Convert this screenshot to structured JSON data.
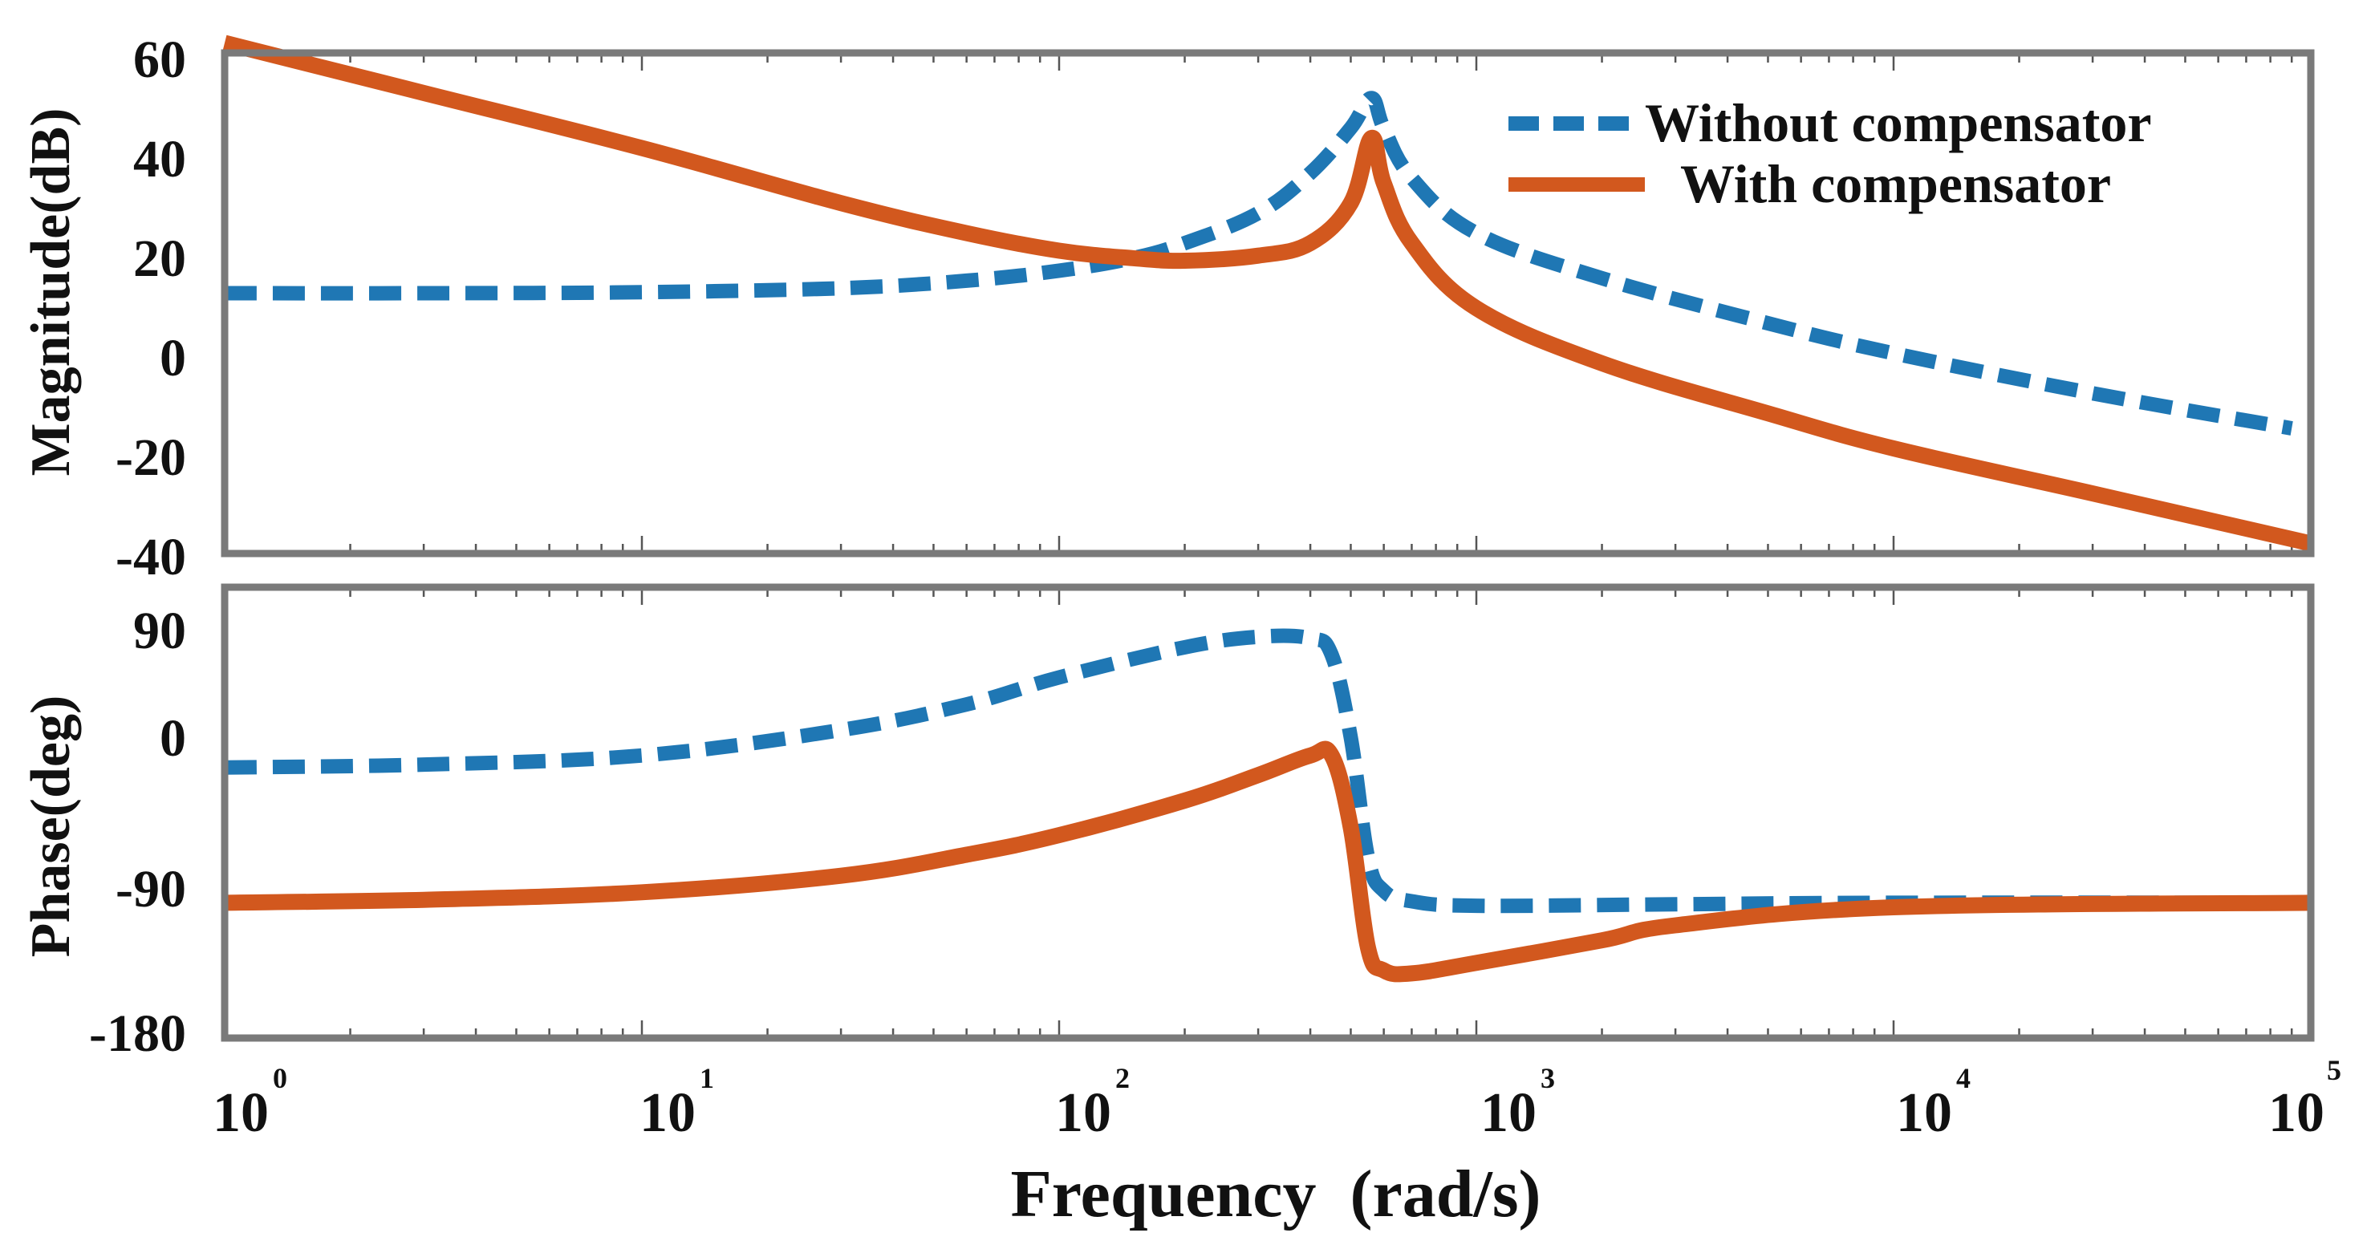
{
  "chart_data": [
    {
      "type": "line",
      "panel": "magnitude",
      "ylabel": "Magnitude(dB)",
      "xscale": "log",
      "xlim": [
        1,
        100000
      ],
      "ylim": [
        -40,
        60
      ],
      "yticks": [
        "60",
        "40",
        "20",
        "0",
        "-20",
        "-40"
      ],
      "yticks_values": [
        60,
        40,
        20,
        0,
        -20,
        -40
      ],
      "legend": {
        "position": "top-right"
      },
      "series": [
        {
          "name": "Without compensator",
          "color": "#1f77b4",
          "style": "dashed",
          "x": [
            1,
            3,
            10,
            30,
            60,
            100,
            150,
            200,
            300,
            400,
            500,
            560,
            600,
            700,
            1000,
            2000,
            5000,
            10000,
            30000,
            90000
          ],
          "y": [
            12,
            12,
            12.2,
            13,
            14.5,
            16.5,
            19,
            22,
            28,
            36,
            45,
            51,
            45,
            35,
            24,
            15,
            6,
            0,
            -8,
            -15
          ]
        },
        {
          "name": "With compensator",
          "color": "#d2581e",
          "style": "solid",
          "x": [
            1,
            3,
            10,
            30,
            60,
            100,
            150,
            200,
            300,
            400,
            500,
            560,
            600,
            700,
            1000,
            2000,
            5000,
            10000,
            30000,
            100000
          ],
          "y": [
            62,
            52,
            41,
            30,
            24,
            20.5,
            19,
            18.5,
            19.5,
            22,
            30,
            43,
            34,
            22,
            9,
            -2,
            -12,
            -19,
            -28,
            -38
          ]
        }
      ]
    },
    {
      "type": "line",
      "panel": "phase",
      "xlabel": "Frequency  (rad/s)",
      "ylabel": "Phase(deg)",
      "xscale": "log",
      "xlim": [
        1,
        100000
      ],
      "ylim": [
        -180,
        120
      ],
      "yticks": [
        "90",
        "0",
        "-90",
        "-180"
      ],
      "yticks_values": [
        90,
        0,
        -90,
        -180
      ],
      "xticks_values": [
        1,
        10,
        100,
        1000,
        10000,
        100000
      ],
      "xticks_base": "10",
      "xticks_exponents": [
        "0",
        "1",
        "2",
        "3",
        "4",
        "5"
      ],
      "series": [
        {
          "name": "Without compensator",
          "color": "#1f77b4",
          "style": "dashed",
          "x": [
            1,
            3,
            10,
            30,
            60,
            100,
            200,
            300,
            400,
            450,
            500,
            550,
            600,
            700,
            1000,
            3000,
            10000,
            100000
          ],
          "y": [
            0,
            2,
            8,
            25,
            42,
            60,
            80,
            87,
            86,
            75,
            20,
            -60,
            -82,
            -89,
            -92,
            -91,
            -90,
            -90
          ]
        },
        {
          "name": "With compensator",
          "color": "#d2581e",
          "style": "solid",
          "x": [
            1,
            3,
            10,
            30,
            60,
            100,
            200,
            300,
            400,
            450,
            500,
            550,
            600,
            700,
            1000,
            2000,
            3000,
            10000,
            100000
          ],
          "y": [
            -90,
            -88,
            -83,
            -72,
            -58,
            -45,
            -22,
            -5,
            8,
            8,
            -40,
            -120,
            -135,
            -137,
            -130,
            -115,
            -105,
            -93,
            -90
          ]
        }
      ]
    }
  ]
}
